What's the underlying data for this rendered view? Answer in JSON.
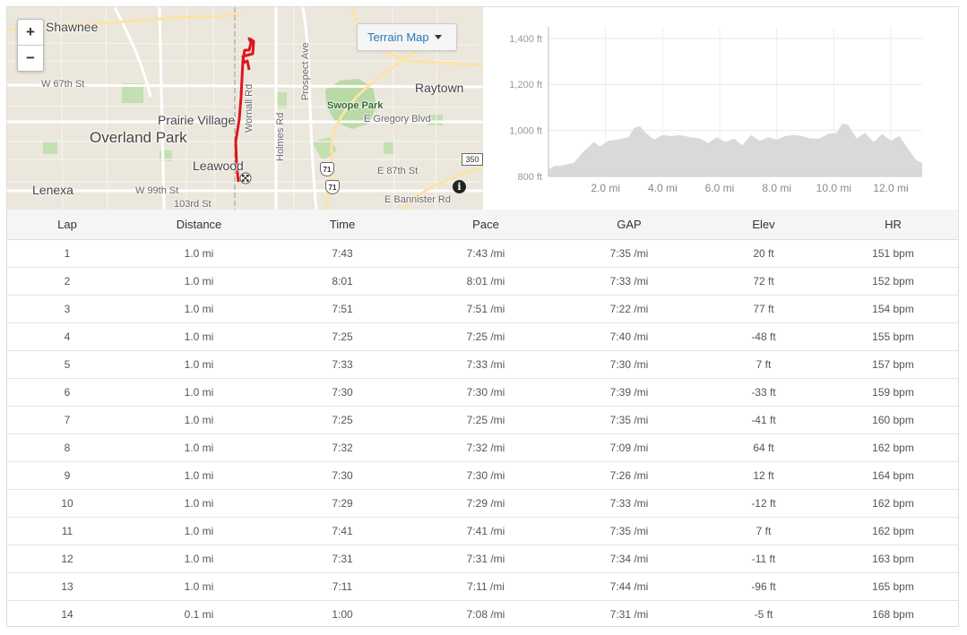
{
  "map": {
    "zoom_in_label": "+",
    "zoom_out_label": "−",
    "terrain_button_label": "Terrain Map",
    "info_label": "i",
    "labels": {
      "shawnee": "Shawnee",
      "w67th": "W 67th St",
      "prairie_village": "Prairie Village",
      "overland_park": "Overland Park",
      "leawood": "Leawood",
      "lenexa": "Lenexa",
      "w99th": "W 99th St",
      "103rd": "103rd St",
      "wornall": "Wornall Rd",
      "holmes": "Holmes Rd",
      "prospect": "Prospect Ave",
      "swope_park": "Swope Park",
      "e_gregory": "E Gregory Blvd",
      "raytown": "Raytown",
      "e87th": "E 87th St",
      "e_bannister": "E Bannister Rd",
      "hwy71a": "71",
      "hwy71b": "71",
      "rt350": "350"
    },
    "route_color": "#e0141e",
    "park_color": "#b9d9a6"
  },
  "chart_data": {
    "type": "area",
    "x_unit": "mi",
    "y_unit": "ft",
    "y_ticks": [
      "800 ft",
      "1,000 ft",
      "1,200 ft",
      "1,400 ft"
    ],
    "x_ticks": [
      "2.0 mi",
      "4.0 mi",
      "6.0 mi",
      "8.0 mi",
      "10.0 mi",
      "12.0 mi"
    ],
    "ylim": [
      800,
      1450
    ],
    "xlim": [
      0,
      13.1
    ],
    "fill_color": "#d9d9d9",
    "x": [
      0,
      0.2,
      0.5,
      0.9,
      1.2,
      1.6,
      1.8,
      2.1,
      2.4,
      2.8,
      3.0,
      3.2,
      3.4,
      3.7,
      4.0,
      4.3,
      4.6,
      5.0,
      5.3,
      5.6,
      5.9,
      6.2,
      6.5,
      6.8,
      7.1,
      7.4,
      7.7,
      8.0,
      8.3,
      8.6,
      8.9,
      9.2,
      9.5,
      9.8,
      10.1,
      10.3,
      10.5,
      10.8,
      11.1,
      11.4,
      11.7,
      12.0,
      12.3,
      12.6,
      12.9,
      13.1
    ],
    "y": [
      830,
      845,
      848,
      860,
      905,
      950,
      930,
      955,
      960,
      970,
      1010,
      1020,
      990,
      960,
      980,
      975,
      980,
      970,
      965,
      945,
      970,
      950,
      965,
      935,
      980,
      955,
      970,
      960,
      975,
      980,
      975,
      965,
      965,
      985,
      990,
      1030,
      1025,
      965,
      990,
      950,
      985,
      955,
      975,
      920,
      870,
      860
    ]
  },
  "table": {
    "headers": [
      "Lap",
      "Distance",
      "Time",
      "Pace",
      "GAP",
      "Elev",
      "HR"
    ],
    "rows": [
      [
        "1",
        "1.0 mi",
        "7:43",
        "7:43 /mi",
        "7:35 /mi",
        "20 ft",
        "151 bpm"
      ],
      [
        "2",
        "1.0 mi",
        "8:01",
        "8:01 /mi",
        "7:33 /mi",
        "72 ft",
        "152 bpm"
      ],
      [
        "3",
        "1.0 mi",
        "7:51",
        "7:51 /mi",
        "7:22 /mi",
        "77 ft",
        "154 bpm"
      ],
      [
        "4",
        "1.0 mi",
        "7:25",
        "7:25 /mi",
        "7:40 /mi",
        "-48 ft",
        "155 bpm"
      ],
      [
        "5",
        "1.0 mi",
        "7:33",
        "7:33 /mi",
        "7:30 /mi",
        "7 ft",
        "157 bpm"
      ],
      [
        "6",
        "1.0 mi",
        "7:30",
        "7:30 /mi",
        "7:39 /mi",
        "-33 ft",
        "159 bpm"
      ],
      [
        "7",
        "1.0 mi",
        "7:25",
        "7:25 /mi",
        "7:35 /mi",
        "-41 ft",
        "160 bpm"
      ],
      [
        "8",
        "1.0 mi",
        "7:32",
        "7:32 /mi",
        "7:09 /mi",
        "64 ft",
        "162 bpm"
      ],
      [
        "9",
        "1.0 mi",
        "7:30",
        "7:30 /mi",
        "7:26 /mi",
        "12 ft",
        "164 bpm"
      ],
      [
        "10",
        "1.0 mi",
        "7:29",
        "7:29 /mi",
        "7:33 /mi",
        "-12 ft",
        "162 bpm"
      ],
      [
        "11",
        "1.0 mi",
        "7:41",
        "7:41 /mi",
        "7:35 /mi",
        "7 ft",
        "162 bpm"
      ],
      [
        "12",
        "1.0 mi",
        "7:31",
        "7:31 /mi",
        "7:34 /mi",
        "-11 ft",
        "163 bpm"
      ],
      [
        "13",
        "1.0 mi",
        "7:11",
        "7:11 /mi",
        "7:44 /mi",
        "-96 ft",
        "165 bpm"
      ],
      [
        "14",
        "0.1 mi",
        "1:00",
        "7:08 /mi",
        "7:31 /mi",
        "-5 ft",
        "168 bpm"
      ]
    ]
  }
}
